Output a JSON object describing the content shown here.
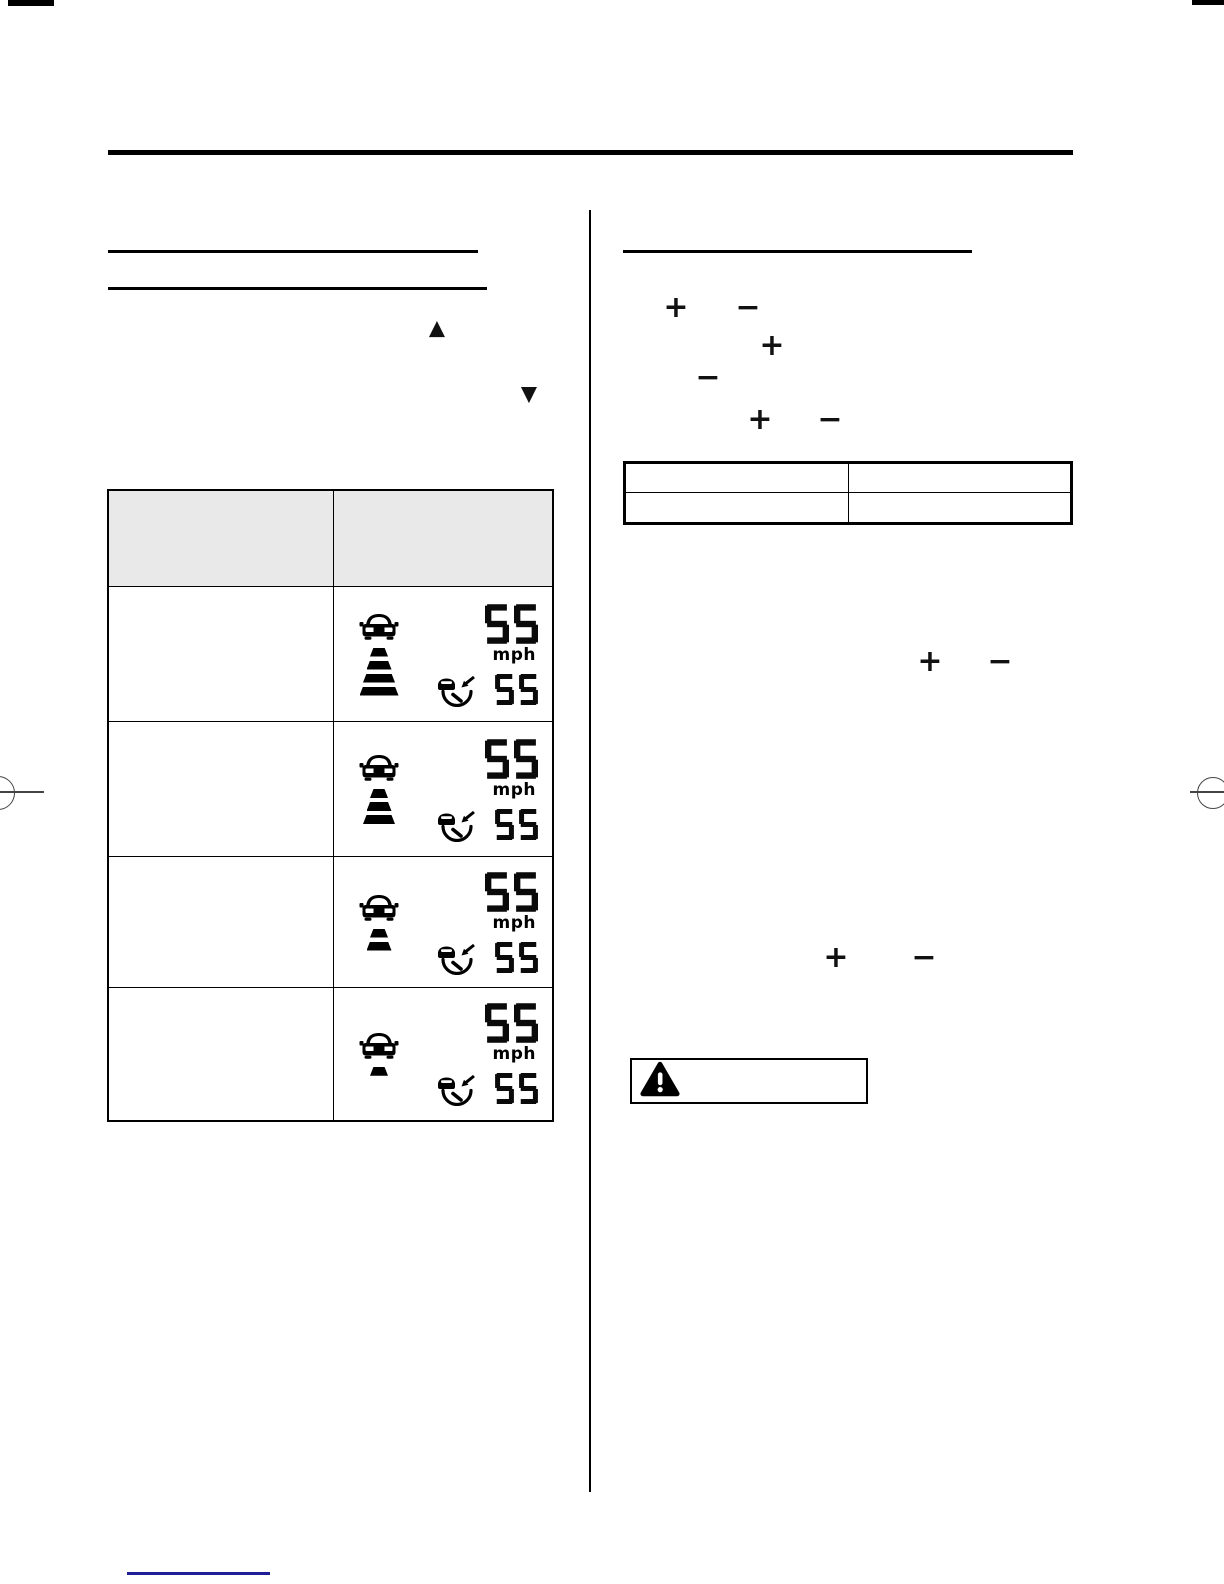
{
  "page": {
    "background": "#ffffff"
  },
  "left_column": {
    "resume_accelerate_symbol": "▲",
    "set_coast_symbol": "▼",
    "distance_table": {
      "header": {
        "col1_label": "",
        "col2_label": ""
      },
      "rows": [
        {
          "bars": 4,
          "speed": "55",
          "unit": "mph",
          "set_speed": "55"
        },
        {
          "bars": 3,
          "speed": "55",
          "unit": "mph",
          "set_speed": "55"
        },
        {
          "bars": 2,
          "speed": "55",
          "unit": "mph",
          "set_speed": "55"
        },
        {
          "bars": 1,
          "speed": "55",
          "unit": "mph",
          "set_speed": "55"
        }
      ]
    }
  },
  "right_column": {
    "plus_symbol": "+",
    "minus_symbol": "−",
    "settings_table": {
      "rows": 2,
      "cols": 2,
      "cells": [
        "",
        "",
        "",
        ""
      ]
    },
    "warning_box": {
      "icon": "warning-triangle",
      "text": ""
    }
  },
  "colors": {
    "rule": "#000000",
    "table_header_bg": "#e9e9e9",
    "registration_mark": "#444444",
    "footer_link_underline": "#1e1e96"
  }
}
